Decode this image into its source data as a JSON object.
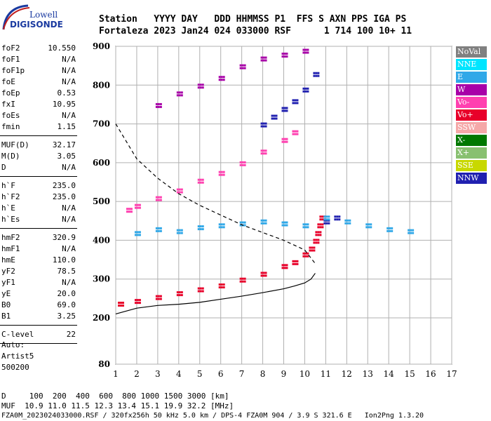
{
  "logo": {
    "line1": "Lowell",
    "line2": "DIGISONDE"
  },
  "header": {
    "row1": "Station   YYYY DAY   DDD HHMMSS P1  FFS S AXN PPS IGA PS",
    "row2": "Fortaleza 2023 Jan24 024 033000 RSF      1 714 100 10+ 11"
  },
  "params_group1": [
    {
      "name": "foF2",
      "value": "10.550"
    },
    {
      "name": "foF1",
      "value": "N/A"
    },
    {
      "name": "foF1p",
      "value": "N/A"
    },
    {
      "name": "foE",
      "value": "N/A"
    },
    {
      "name": "foEp",
      "value": "0.53"
    },
    {
      "name": "fxI",
      "value": "10.95"
    },
    {
      "name": "foEs",
      "value": "N/A"
    },
    {
      "name": "fmin",
      "value": "1.15"
    }
  ],
  "params_group2": [
    {
      "name": "MUF(D)",
      "value": "32.17"
    },
    {
      "name": "M(D)",
      "value": "3.05"
    },
    {
      "name": "D",
      "value": "N/A"
    }
  ],
  "params_group3": [
    {
      "name": "h`F",
      "value": "235.0"
    },
    {
      "name": "h`F2",
      "value": "235.0"
    },
    {
      "name": "h`E",
      "value": "N/A"
    },
    {
      "name": "h`Es",
      "value": "N/A"
    }
  ],
  "params_group4": [
    {
      "name": "hmF2",
      "value": "320.9"
    },
    {
      "name": "hmF1",
      "value": "N/A"
    },
    {
      "name": "hmE",
      "value": "110.0"
    },
    {
      "name": "yF2",
      "value": "78.5"
    },
    {
      "name": "yF1",
      "value": "N/A"
    },
    {
      "name": "yE",
      "value": "20.0"
    },
    {
      "name": "B0",
      "value": "69.0"
    },
    {
      "name": "B1",
      "value": "3.25"
    }
  ],
  "params_group5": [
    {
      "name": "C-level",
      "value": "22"
    }
  ],
  "auto": {
    "line1": "Auto:",
    "line2": "Artist5",
    "line3": "500200"
  },
  "legend": [
    {
      "label": "NoVal",
      "color": "#808080"
    },
    {
      "label": "NNE",
      "color": "#00e5ff"
    },
    {
      "label": "E",
      "color": "#30a8e8"
    },
    {
      "label": "W",
      "color": "#a800a8"
    },
    {
      "label": "Vo-",
      "color": "#ff40b0"
    },
    {
      "label": "Vo+",
      "color": "#e8002a"
    },
    {
      "label": "SSW",
      "color": "#f5a8a8"
    },
    {
      "label": "X-",
      "color": "#007800"
    },
    {
      "label": "X+",
      "color": "#88c070"
    },
    {
      "label": "SSE",
      "color": "#c8d800"
    },
    {
      "label": "NNW",
      "color": "#2020b0"
    }
  ],
  "footer": {
    "distance_line": "D     100  200  400  600  800 1000 1500 3000 [km]",
    "muf_line": "MUF  10.9 11.0 11.5 12.3 13.4 15.1 19.9 32.2 [MHz]",
    "file_line": "FZA0M_2023024033000.RSF / 320fx256h 50 kHz 5.0 km / DPS-4 FZA0M 904 / 3.9 S 321.6 E   Ion2Png 1.3.20"
  },
  "chart_data": {
    "type": "scatter",
    "x_ticks": [
      "1",
      "2",
      "3",
      "4",
      "5",
      "6",
      "7",
      "8",
      "9",
      "10",
      "11",
      "12",
      "13",
      "14",
      "15",
      "16",
      "17"
    ],
    "y_ticks": [
      "80",
      "200",
      "300",
      "400",
      "500",
      "600",
      "700",
      "800",
      "900"
    ],
    "xlim": [
      1,
      17
    ],
    "grid": true,
    "series": [
      {
        "color": "#e8002a",
        "x": [
          1.2,
          2,
          3,
          4,
          5,
          6,
          7,
          8,
          9,
          9.5,
          10,
          10.3,
          10.5,
          10.6,
          10.7,
          10.8
        ],
        "y": [
          238,
          245,
          255,
          265,
          275,
          285,
          300,
          315,
          335,
          345,
          365,
          380,
          400,
          420,
          440,
          460
        ]
      },
      {
        "color": "#ff40b0",
        "x": [
          1.6,
          2,
          3,
          4,
          5,
          6,
          7,
          8,
          9,
          9.5
        ],
        "y": [
          480,
          490,
          510,
          530,
          555,
          575,
          600,
          630,
          660,
          680
        ]
      },
      {
        "color": "#2020b0",
        "x": [
          8,
          8.5,
          9,
          9.5,
          10,
          10.5,
          11,
          11.5
        ],
        "y": [
          700,
          720,
          740,
          760,
          790,
          830,
          450,
          460
        ]
      },
      {
        "color": "#30a8e8",
        "x": [
          2,
          3,
          4,
          5,
          6,
          7,
          8,
          9,
          10,
          11,
          12,
          13,
          14,
          15
        ],
        "y": [
          420,
          430,
          425,
          435,
          440,
          445,
          450,
          445,
          440,
          460,
          450,
          440,
          430,
          425
        ]
      },
      {
        "color": "#a800a8",
        "x": [
          3,
          4,
          5,
          6,
          7,
          8,
          9,
          10
        ],
        "y": [
          750,
          780,
          800,
          820,
          850,
          870,
          880,
          890
        ]
      }
    ],
    "black_curve": {
      "x": [
        1,
        2,
        3,
        4,
        5,
        6,
        7,
        8,
        9,
        9.5,
        10,
        10.3,
        10.5
      ],
      "y": [
        210,
        225,
        232,
        235,
        240,
        248,
        256,
        265,
        275,
        282,
        290,
        300,
        315
      ]
    },
    "dashed_curve": {
      "x": [
        1,
        2,
        3,
        4,
        5,
        6,
        7,
        8,
        9,
        10,
        10.5
      ],
      "y": [
        700,
        610,
        560,
        520,
        490,
        465,
        440,
        420,
        400,
        375,
        340
      ]
    }
  }
}
